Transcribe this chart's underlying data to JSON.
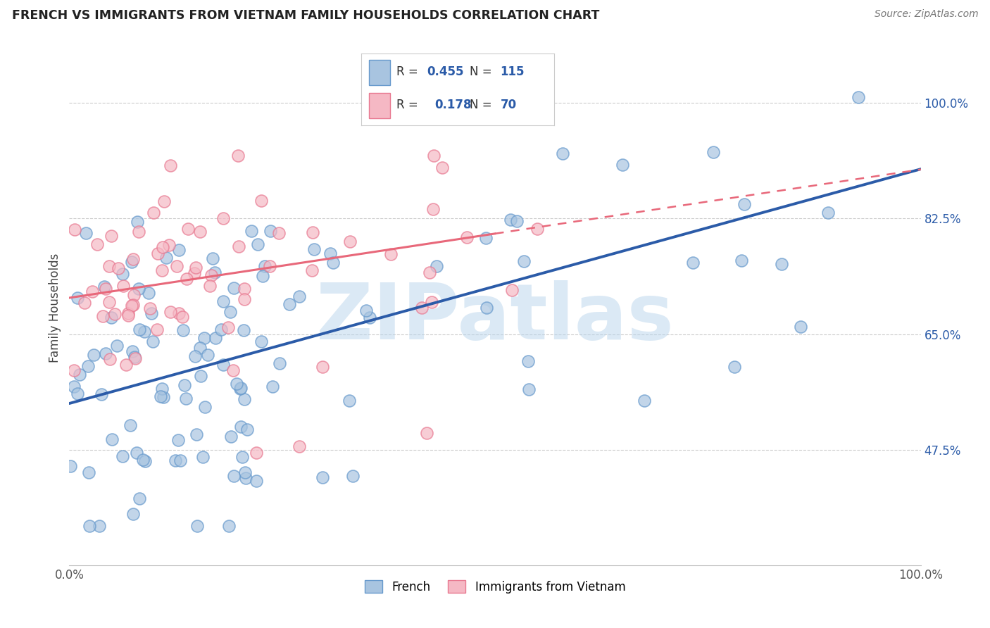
{
  "title": "FRENCH VS IMMIGRANTS FROM VIETNAM FAMILY HOUSEHOLDS CORRELATION CHART",
  "source": "Source: ZipAtlas.com",
  "ylabel": "Family Households",
  "right_ytick_labels": [
    "100.0%",
    "82.5%",
    "65.0%",
    "47.5%"
  ],
  "right_ytick_values": [
    1.0,
    0.825,
    0.65,
    0.475
  ],
  "legend_french_R": "0.455",
  "legend_french_N": "115",
  "legend_vietnam_R": "0.178",
  "legend_vietnam_N": "70",
  "legend_label_french": "French",
  "legend_label_vietnam": "Immigrants from Vietnam",
  "blue_face_color": "#A8C4E0",
  "blue_edge_color": "#6699CC",
  "pink_face_color": "#F5B8C4",
  "pink_edge_color": "#E87890",
  "blue_line_color": "#2B5BA8",
  "pink_line_color": "#E8687A",
  "watermark_text": "ZIPatlas",
  "watermark_color": "#B8D4EC",
  "background_color": "#FFFFFF",
  "grid_color": "#CCCCCC",
  "xlim": [
    0.0,
    1.0
  ],
  "ylim": [
    0.3,
    1.08
  ],
  "french_line_x0": 0.0,
  "french_line_x1": 1.0,
  "french_line_y0": 0.545,
  "french_line_y1": 0.9,
  "vietnam_line_x0": 0.0,
  "vietnam_line_x1": 0.72,
  "vietnam_line_y0": 0.705,
  "vietnam_line_y1": 0.845
}
